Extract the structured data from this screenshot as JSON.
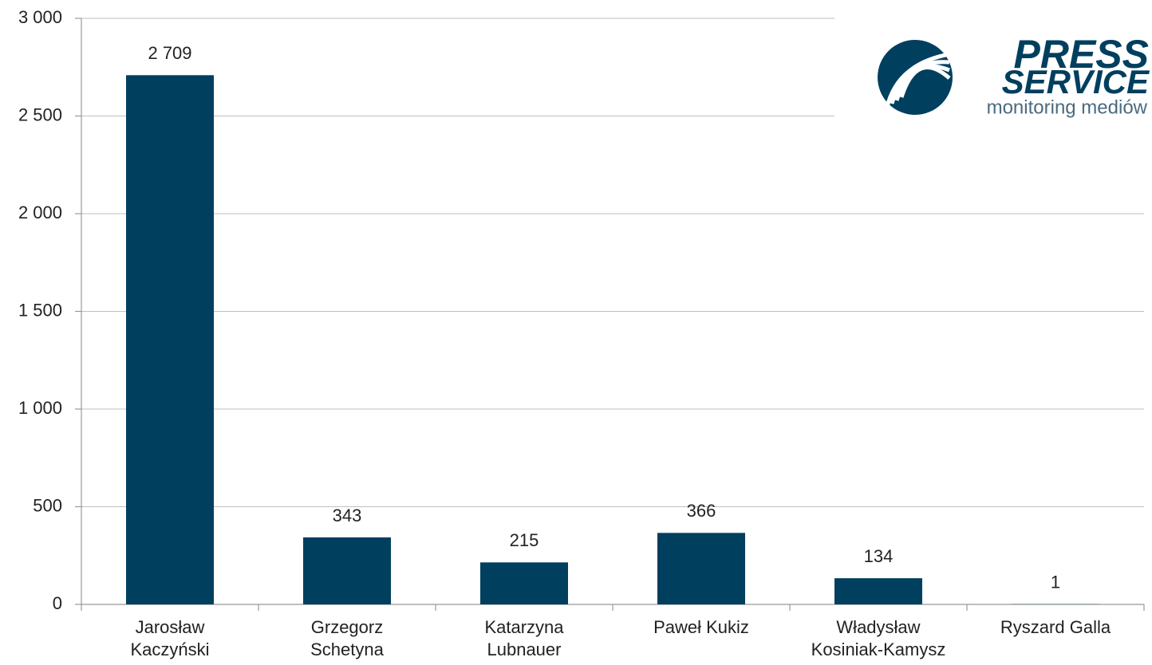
{
  "chart_data": {
    "type": "bar",
    "categories": [
      [
        "Jarosław",
        "Kaczyński"
      ],
      [
        "Grzegorz",
        "Schetyna"
      ],
      [
        "Katarzyna",
        "Lubnauer"
      ],
      [
        "Paweł Kukiz"
      ],
      [
        "Władysław",
        "Kosiniak-Kamysz"
      ],
      [
        "Ryszard Galla"
      ]
    ],
    "values": [
      2709,
      343,
      215,
      366,
      134,
      1
    ],
    "value_labels": [
      "2 709",
      "343",
      "215",
      "366",
      "134",
      "1"
    ],
    "color": "#013f5f",
    "ylim": [
      0,
      3000
    ],
    "yticks": [
      0,
      500,
      {
        "value": 1000,
        "label": "1 000"
      },
      {
        "value": 1500,
        "label": "1 500"
      },
      {
        "value": 2000,
        "label": "2 000"
      },
      {
        "value": 2500,
        "label": "2 500"
      },
      {
        "value": 3000,
        "label": "3 000"
      }
    ],
    "grid": true
  },
  "logo": {
    "line1": "PRESS",
    "line2": "SERVICE",
    "tagline": "monitoring mediów"
  }
}
